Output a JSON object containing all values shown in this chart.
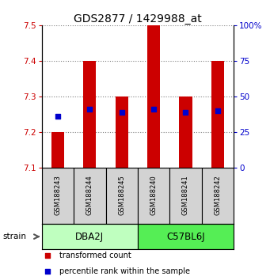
{
  "title": "GDS2877 / 1429988_at",
  "samples": [
    "GSM188243",
    "GSM188244",
    "GSM188245",
    "GSM188240",
    "GSM188241",
    "GSM188242"
  ],
  "groups": [
    "DBA2J",
    "C57BL6J"
  ],
  "group_colors": [
    "#BFFFBF",
    "#55EE55"
  ],
  "bar_bottom": 7.1,
  "bar_tops": [
    7.2,
    7.4,
    7.3,
    7.5,
    7.3,
    7.4
  ],
  "percentile_y": [
    7.245,
    7.265,
    7.255,
    7.265,
    7.255,
    7.26
  ],
  "ylim": [
    7.1,
    7.5
  ],
  "yticks": [
    7.1,
    7.2,
    7.3,
    7.4,
    7.5
  ],
  "right_ytick_labels": [
    "0",
    "25",
    "50",
    "75",
    "100%"
  ],
  "right_ytick_pcts": [
    0,
    25,
    50,
    75,
    100
  ],
  "bar_color": "#CC0000",
  "percentile_color": "#0000CC",
  "bar_width": 0.4,
  "sample_bg_color": "#D3D3D3",
  "legend_red_label": "transformed count",
  "legend_blue_label": "percentile rank within the sample",
  "strain_label": "strain",
  "title_fontsize": 10,
  "tick_fontsize": 7.5,
  "group_fontsize": 8.5,
  "legend_fontsize": 7
}
